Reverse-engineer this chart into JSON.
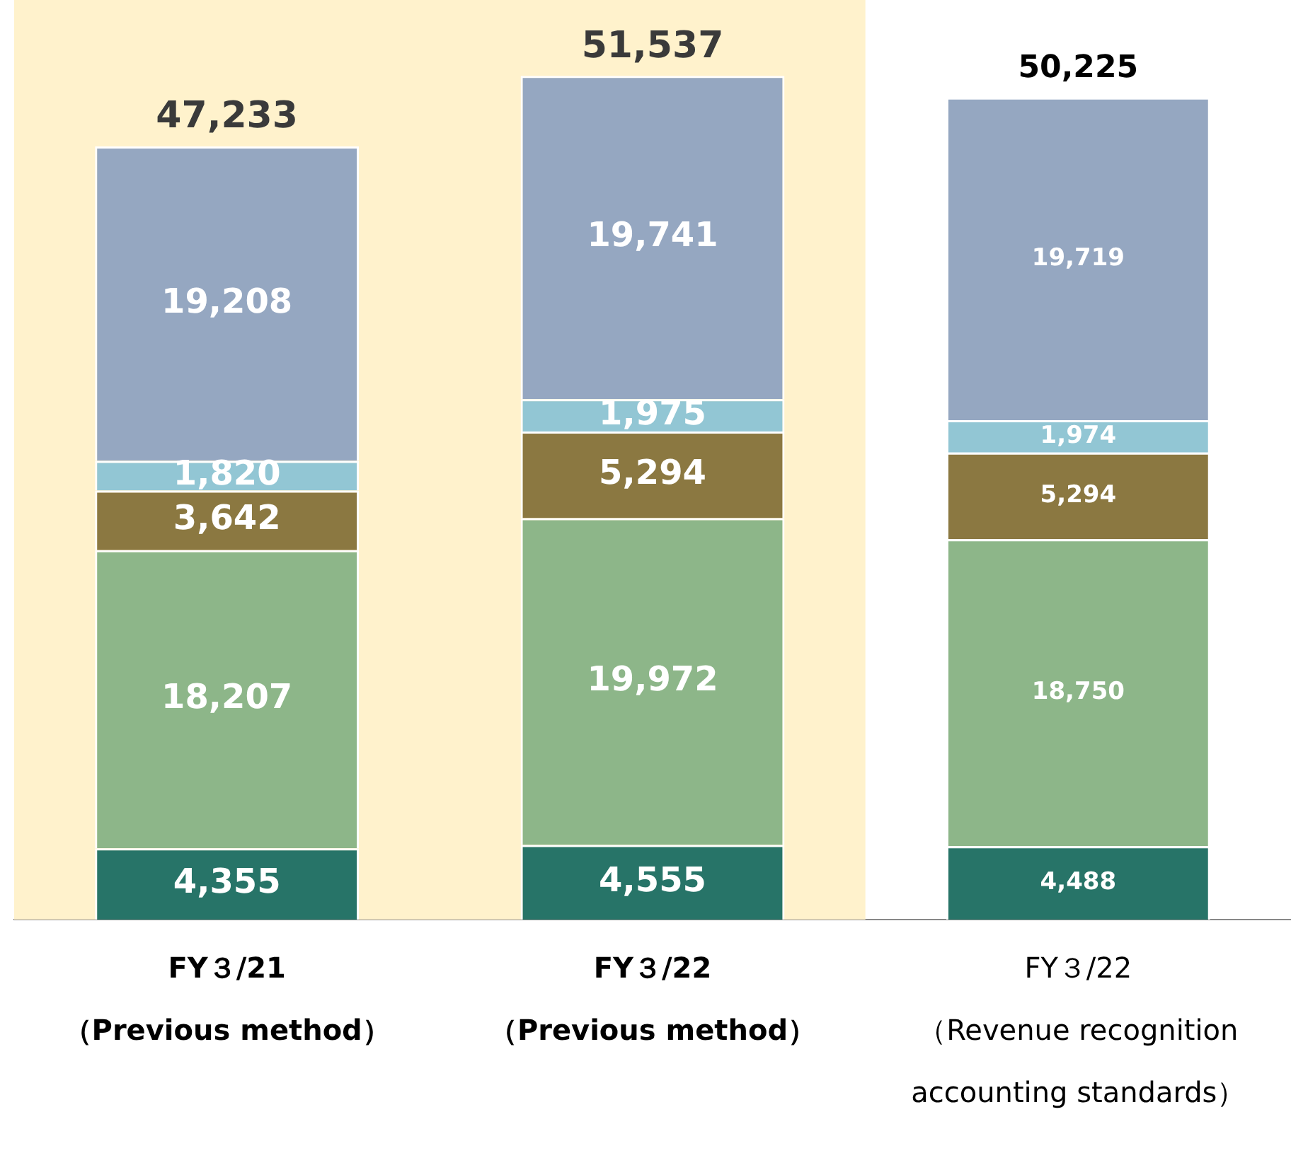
{
  "chart_data": {
    "type": "bar",
    "stacked": true,
    "categories": [
      "FY３/21\n（Previous method）",
      "FY３/22\n（Previous method）",
      "FY３/22\n（Revenue recognition\naccounting standards）"
    ],
    "series": [
      {
        "color": "#277468",
        "values": [
          4355,
          4555,
          4488
        ],
        "value_labels": [
          "4,355",
          "4,555",
          "4,488"
        ]
      },
      {
        "color": "#8db689",
        "values": [
          18207,
          19972,
          18750
        ],
        "value_labels": [
          "18,207",
          "19,972",
          "18,750"
        ]
      },
      {
        "color": "#8b7841",
        "values": [
          3642,
          5294,
          5294
        ],
        "value_labels": [
          "3,642",
          "5,294",
          "5,294"
        ]
      },
      {
        "color": "#92c6d4",
        "values": [
          1820,
          1975,
          1974
        ],
        "value_labels": [
          "1,820",
          "1,975",
          "1,974"
        ]
      },
      {
        "color": "#95a7c1",
        "values": [
          19208,
          19741,
          19719
        ],
        "value_labels": [
          "19,208",
          "19,741",
          "19,719"
        ]
      }
    ],
    "totals": [
      "47,233",
      "51,537",
      "50,225"
    ],
    "grid": false,
    "legend": false,
    "bands": [
      {
        "axis": "x",
        "from": "FY３/21\n（Previous method）",
        "to": "FY３/22\n（Previous method）",
        "color": "#fff2cc"
      }
    ]
  }
}
